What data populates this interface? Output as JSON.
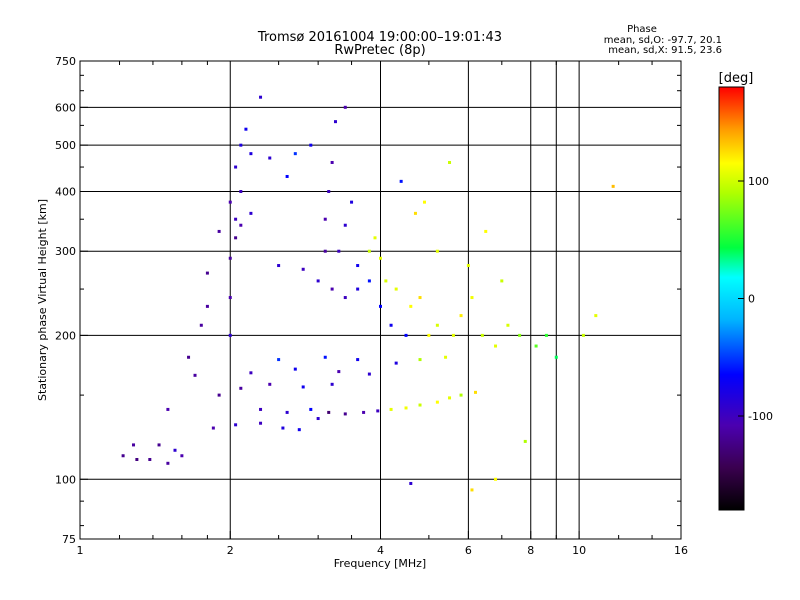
{
  "chart_data": {
    "type": "scatter",
    "title": "Tromsø 20161004 19:00:00–19:01:43",
    "subtitle": "RwPretec (8p)",
    "xlabel": "Frequency [MHz]",
    "ylabel": "Stationary phase Virtual Height [km]",
    "x_scale": "log",
    "y_scale": "log",
    "xlim": [
      1,
      16
    ],
    "ylim": [
      75,
      750
    ],
    "x_ticks": [
      1,
      2,
      4,
      6,
      8,
      10,
      16
    ],
    "x_gridlines": [
      2,
      4,
      6,
      8,
      9,
      10
    ],
    "y_ticks": [
      75,
      100,
      200,
      300,
      400,
      500,
      600,
      750
    ],
    "y_gridlines": [
      100,
      200,
      300,
      400,
      500,
      600
    ],
    "grid": true,
    "stats": {
      "heading": "Phase",
      "O_line": "mean, sd,O: -97.7, 20.1",
      "X_line": "mean, sd,X: 91.5, 23.6"
    },
    "colorbar": {
      "label": "[deg]",
      "range": [
        -180,
        180
      ],
      "ticks": [
        100,
        0,
        -100
      ],
      "colormap": "rainbow"
    },
    "series": [
      {
        "points": [
          [
            1.22,
            112,
            -130
          ],
          [
            1.3,
            110,
            -135
          ],
          [
            1.38,
            110,
            -130
          ],
          [
            1.5,
            108,
            -125
          ],
          [
            1.6,
            112,
            -120
          ],
          [
            1.44,
            118,
            -130
          ],
          [
            1.28,
            118,
            -125
          ],
          [
            1.55,
            115,
            -110
          ],
          [
            1.85,
            128,
            -120
          ],
          [
            2.05,
            130,
            -110
          ],
          [
            2.3,
            131,
            -115
          ],
          [
            2.55,
            128,
            -105
          ],
          [
            2.75,
            127,
            -100
          ],
          [
            3.0,
            134,
            -110
          ],
          [
            2.3,
            140,
            -115
          ],
          [
            2.6,
            138,
            -110
          ],
          [
            2.9,
            140,
            -95
          ],
          [
            3.15,
            138,
            -140
          ],
          [
            3.4,
            137,
            -130
          ],
          [
            3.7,
            138,
            -120
          ],
          [
            3.95,
            139,
            -115
          ],
          [
            4.2,
            140,
            100
          ],
          [
            4.5,
            141,
            105
          ],
          [
            4.8,
            143,
            90
          ],
          [
            5.2,
            145,
            110
          ],
          [
            5.5,
            148,
            100
          ],
          [
            5.8,
            150,
            80
          ],
          [
            6.2,
            152,
            120
          ],
          [
            1.9,
            150,
            -130
          ],
          [
            2.1,
            155,
            -125
          ],
          [
            2.4,
            158,
            -120
          ],
          [
            2.8,
            156,
            -100
          ],
          [
            3.2,
            158,
            -110
          ],
          [
            1.7,
            165,
            -125
          ],
          [
            2.2,
            167,
            -115
          ],
          [
            2.7,
            170,
            -100
          ],
          [
            3.3,
            168,
            -120
          ],
          [
            3.8,
            166,
            -110
          ],
          [
            2.5,
            178,
            -80
          ],
          [
            3.1,
            180,
            -90
          ],
          [
            3.6,
            178,
            -100
          ],
          [
            4.3,
            175,
            -105
          ],
          [
            4.8,
            178,
            80
          ],
          [
            5.4,
            180,
            100
          ],
          [
            2.0,
            200,
            -110
          ],
          [
            2.0,
            240,
            -120
          ],
          [
            2.0,
            290,
            -125
          ],
          [
            2.05,
            320,
            -130
          ],
          [
            2.05,
            350,
            -115
          ],
          [
            1.9,
            330,
            -125
          ],
          [
            2.1,
            340,
            -120
          ],
          [
            2.2,
            360,
            -110
          ],
          [
            2.0,
            380,
            -120
          ],
          [
            2.1,
            400,
            -115
          ],
          [
            2.05,
            450,
            -110
          ],
          [
            2.1,
            500,
            -105
          ],
          [
            2.15,
            540,
            -100
          ],
          [
            2.3,
            630,
            -110
          ],
          [
            2.2,
            480,
            -105
          ],
          [
            1.8,
            270,
            -130
          ],
          [
            1.8,
            230,
            -125
          ],
          [
            1.75,
            210,
            -125
          ],
          [
            2.6,
            430,
            -95
          ],
          [
            2.7,
            480,
            -80
          ],
          [
            2.5,
            280,
            -110
          ],
          [
            2.8,
            275,
            -115
          ],
          [
            3.0,
            260,
            -110
          ],
          [
            3.2,
            250,
            -120
          ],
          [
            3.4,
            240,
            -115
          ],
          [
            3.1,
            300,
            -125
          ],
          [
            3.1,
            350,
            -120
          ],
          [
            3.15,
            400,
            -115
          ],
          [
            3.2,
            460,
            -120
          ],
          [
            3.25,
            560,
            -110
          ],
          [
            3.3,
            300,
            -115
          ],
          [
            3.4,
            340,
            -110
          ],
          [
            3.5,
            380,
            -105
          ],
          [
            3.6,
            280,
            -100
          ],
          [
            3.6,
            250,
            -105
          ],
          [
            3.8,
            300,
            90
          ],
          [
            3.9,
            320,
            100
          ],
          [
            4.0,
            290,
            100
          ],
          [
            4.1,
            260,
            95
          ],
          [
            4.3,
            250,
            100
          ],
          [
            3.8,
            260,
            -90
          ],
          [
            4.0,
            230,
            -95
          ],
          [
            4.2,
            210,
            -100
          ],
          [
            4.5,
            200,
            -95
          ],
          [
            4.6,
            230,
            110
          ],
          [
            4.8,
            240,
            120
          ],
          [
            5.0,
            200,
            110
          ],
          [
            5.2,
            210,
            95
          ],
          [
            5.6,
            200,
            100
          ],
          [
            5.8,
            220,
            115
          ],
          [
            6.1,
            240,
            105
          ],
          [
            6.4,
            200,
            90
          ],
          [
            6.8,
            190,
            100
          ],
          [
            7.2,
            210,
            95
          ],
          [
            7.6,
            200,
            70
          ],
          [
            8.2,
            190,
            60
          ],
          [
            8.6,
            200,
            50
          ],
          [
            9.0,
            180,
            30
          ],
          [
            4.7,
            360,
            120
          ],
          [
            4.9,
            380,
            110
          ],
          [
            5.2,
            300,
            100
          ],
          [
            5.5,
            460,
            90
          ],
          [
            6.0,
            280,
            100
          ],
          [
            4.4,
            420,
            -90
          ],
          [
            6.5,
            330,
            110
          ],
          [
            7.0,
            260,
            90
          ],
          [
            6.8,
            100,
            110
          ],
          [
            6.1,
            95,
            120
          ],
          [
            3.4,
            600,
            -120
          ],
          [
            2.9,
            500,
            -100
          ],
          [
            2.4,
            470,
            -110
          ],
          [
            1.65,
            180,
            -130
          ],
          [
            1.5,
            140,
            -120
          ],
          [
            11.7,
            410,
            130
          ],
          [
            10.2,
            200,
            90
          ],
          [
            10.8,
            220,
            100
          ],
          [
            4.6,
            98,
            -110
          ],
          [
            7.8,
            120,
            80
          ]
        ]
      }
    ]
  }
}
